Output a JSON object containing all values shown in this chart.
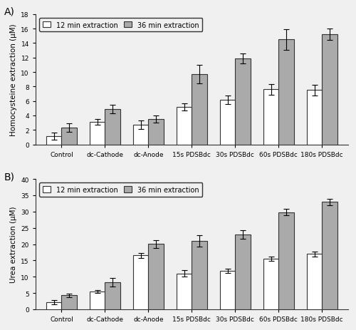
{
  "categories": [
    "Control",
    "dc-Cathode",
    "dc-Anode",
    "15s PDSBdc",
    "30s PDSBdc",
    "60s PDSBdc",
    "180s PDSBdc"
  ],
  "panel_A": {
    "title": "A)",
    "ylabel": "Homocysteine extraction (μM)",
    "ylim": [
      0,
      18
    ],
    "yticks": [
      0,
      2,
      4,
      6,
      8,
      10,
      12,
      14,
      16,
      18
    ],
    "bar12": [
      1.1,
      3.1,
      2.7,
      5.2,
      6.2,
      7.6,
      7.5
    ],
    "bar36": [
      2.3,
      4.9,
      3.5,
      9.7,
      11.9,
      14.5,
      15.2
    ],
    "err12": [
      0.5,
      0.4,
      0.6,
      0.5,
      0.6,
      0.7,
      0.7
    ],
    "err36": [
      0.6,
      0.6,
      0.5,
      1.3,
      0.7,
      1.4,
      0.8
    ]
  },
  "panel_B": {
    "title": "B)",
    "ylabel": "Urea extraction (μM)",
    "ylim": [
      0,
      40
    ],
    "yticks": [
      0,
      5,
      10,
      15,
      20,
      25,
      30,
      35,
      40
    ],
    "bar12": [
      2.2,
      5.4,
      16.5,
      11.0,
      11.8,
      15.5,
      17.0
    ],
    "bar36": [
      4.3,
      8.2,
      20.1,
      21.0,
      23.0,
      29.8,
      33.0
    ],
    "err12": [
      0.6,
      0.5,
      0.7,
      1.0,
      0.6,
      0.7,
      0.8
    ],
    "err36": [
      0.5,
      1.3,
      1.2,
      1.8,
      1.3,
      1.0,
      1.0
    ]
  },
  "bar_color_12": "#ffffff",
  "bar_color_36": "#aaaaaa",
  "bar_edgecolor": "#333333",
  "bg_color": "#f0f0f0",
  "fig_bg_color": "#f0f0f0",
  "legend_labels": [
    "12 min extraction",
    "36 min extraction"
  ],
  "bar_width": 0.35,
  "capsize": 3,
  "elinewidth": 0.8,
  "tick_fontsize": 6.5,
  "ylabel_fontsize": 7.5,
  "legend_fontsize": 7.0,
  "panel_label_fontsize": 10
}
